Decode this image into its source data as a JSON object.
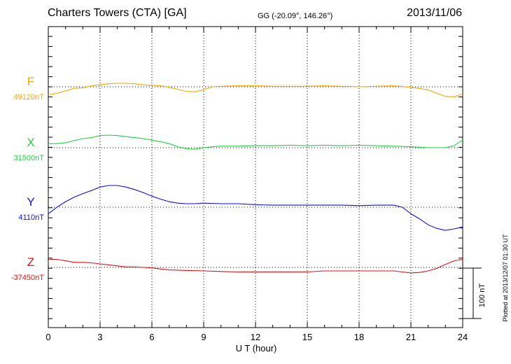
{
  "header": {
    "title": "Charters Towers (CTA)  [GA]",
    "coords": "GG (-20.09°, 146.26°)",
    "date": "2013/11/06"
  },
  "plotted_note": "Plotted at 2013/12/07 01:30 UT",
  "scale_label": "100 nT",
  "chart_data": {
    "type": "line",
    "title": "Charters Towers (CTA)  [GA]",
    "xlabel": "U T (hour)",
    "ylabel": "",
    "xlim": [
      0,
      24
    ],
    "x_ticks": [
      0,
      3,
      6,
      9,
      12,
      15,
      18,
      21,
      24
    ],
    "x_tick_labels": [
      "0",
      "3",
      "6",
      "9",
      "12",
      "15",
      "18",
      "21",
      "24"
    ],
    "grid": true,
    "scale_bar_nT": 100,
    "series": [
      {
        "name": "F",
        "base_label": "49120nT",
        "base": 49120,
        "color": "#f0a800",
        "x": [
          0,
          0.5,
          1,
          1.5,
          2,
          2.5,
          3,
          3.5,
          4,
          4.5,
          5,
          5.5,
          6,
          6.5,
          7,
          7.5,
          8,
          8.5,
          9,
          9.5,
          10,
          11,
          12,
          13,
          14,
          15,
          16,
          17,
          18,
          19,
          20,
          21,
          22,
          22.5,
          23,
          23.5,
          24
        ],
        "values": [
          49104,
          49107,
          49112,
          49117,
          49118,
          49122,
          49124,
          49126,
          49127,
          49127,
          49126,
          49124,
          49123,
          49122,
          49119,
          49115,
          49111,
          49110,
          49114,
          49120,
          49121,
          49122,
          49122,
          49121,
          49121,
          49121,
          49122,
          49121,
          49120,
          49121,
          49122,
          49119,
          49114,
          49107,
          49101,
          49100,
          49106
        ]
      },
      {
        "name": "X",
        "base_label": "31500nT",
        "base": 31500,
        "color": "#20d040",
        "x": [
          0,
          0.5,
          1,
          1.5,
          2,
          2.5,
          3,
          3.5,
          4,
          4.5,
          5,
          5.5,
          6,
          6.5,
          7,
          7.5,
          8,
          8.5,
          9,
          9.5,
          10,
          11,
          12,
          13,
          14,
          15,
          16,
          17,
          18,
          19,
          20,
          21,
          22,
          23,
          23.5,
          24
        ],
        "values": [
          31508,
          31508,
          31510,
          31514,
          31518,
          31520,
          31524,
          31525,
          31524,
          31522,
          31520,
          31518,
          31515,
          31512,
          31508,
          31502,
          31498,
          31497,
          31500,
          31502,
          31503,
          31503,
          31504,
          31504,
          31505,
          31504,
          31505,
          31504,
          31505,
          31504,
          31503,
          31502,
          31500,
          31500,
          31504,
          31515
        ]
      },
      {
        "name": "Y",
        "base_label": "4110nT",
        "base": 4110,
        "color": "#1010d0",
        "x": [
          0,
          0.5,
          1,
          1.5,
          2,
          2.5,
          3,
          3.5,
          4,
          4.5,
          5,
          5.5,
          6,
          6.5,
          7,
          7.5,
          8,
          8.5,
          9,
          10,
          11,
          12,
          13,
          14,
          15,
          16,
          17,
          18,
          19,
          20,
          20.5,
          21,
          21.5,
          22,
          22.5,
          23,
          23.5,
          24
        ],
        "values": [
          4097,
          4110,
          4121,
          4130,
          4137,
          4143,
          4150,
          4153,
          4153,
          4150,
          4145,
          4139,
          4132,
          4126,
          4121,
          4118,
          4117,
          4117,
          4118,
          4117,
          4117,
          4115,
          4114,
          4114,
          4114,
          4114,
          4114,
          4113,
          4114,
          4114,
          4110,
          4097,
          4087,
          4075,
          4068,
          4064,
          4067,
          4071
        ]
      },
      {
        "name": "Z",
        "base_label": "-37450nT",
        "base": -37450,
        "color": "#e01010",
        "x": [
          0,
          0.5,
          1,
          1.5,
          2,
          2.5,
          3,
          3.5,
          4,
          4.5,
          5,
          5.5,
          6,
          6.5,
          7,
          8,
          9,
          10,
          11,
          12,
          13,
          14,
          15,
          16,
          17,
          18,
          19,
          20,
          20.5,
          21,
          21.5,
          22,
          22.5,
          23,
          23.5,
          24
        ],
        "values": [
          -37434,
          -37434,
          -37437,
          -37440,
          -37440,
          -37441,
          -37443,
          -37445,
          -37447,
          -37449,
          -37449,
          -37450,
          -37451,
          -37453,
          -37455,
          -37456,
          -37457,
          -37458,
          -37459,
          -37459,
          -37459,
          -37459,
          -37459,
          -37457,
          -37457,
          -37457,
          -37457,
          -37457,
          -37459,
          -37461,
          -37460,
          -37457,
          -37452,
          -37444,
          -37437,
          -37434
        ]
      }
    ]
  }
}
